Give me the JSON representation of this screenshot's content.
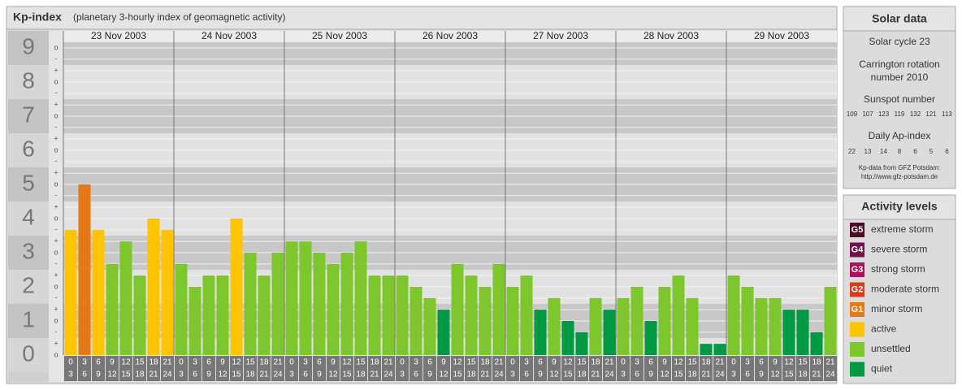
{
  "chart_data": {
    "type": "bar",
    "title": "Kp-index",
    "subtitle": "(planetary 3-hourly index of geomagnetic activity)",
    "ylim": [
      0,
      9.5
    ],
    "yticks": [
      0,
      1,
      2,
      3,
      4,
      5,
      6,
      7,
      8,
      9
    ],
    "minor_yticks": [
      {
        "value": 0,
        "label": "o"
      },
      {
        "value": 0.33,
        "label": "+"
      },
      {
        "value": 0.67,
        "label": "-"
      },
      {
        "value": 1,
        "label": "o"
      },
      {
        "value": 1.33,
        "label": "+"
      },
      {
        "value": 1.67,
        "label": "-"
      },
      {
        "value": 2,
        "label": "o"
      },
      {
        "value": 2.33,
        "label": "+"
      },
      {
        "value": 2.67,
        "label": "-"
      },
      {
        "value": 3,
        "label": "o"
      },
      {
        "value": 3.33,
        "label": "+"
      },
      {
        "value": 3.67,
        "label": "-"
      },
      {
        "value": 4,
        "label": "o"
      },
      {
        "value": 4.33,
        "label": "+"
      },
      {
        "value": 4.67,
        "label": "-"
      },
      {
        "value": 5,
        "label": "o"
      },
      {
        "value": 5.33,
        "label": "+"
      },
      {
        "value": 5.67,
        "label": "-"
      },
      {
        "value": 6,
        "label": "o"
      },
      {
        "value": 6.33,
        "label": "+"
      },
      {
        "value": 6.67,
        "label": "-"
      },
      {
        "value": 7,
        "label": "o"
      },
      {
        "value": 7.33,
        "label": "+"
      },
      {
        "value": 7.67,
        "label": "-"
      },
      {
        "value": 8,
        "label": "o"
      },
      {
        "value": 8.33,
        "label": "+"
      },
      {
        "value": 8.67,
        "label": "-"
      },
      {
        "value": 9,
        "label": "o"
      }
    ],
    "hours": [
      [
        "0",
        "3"
      ],
      [
        "3",
        "6"
      ],
      [
        "6",
        "9"
      ],
      [
        "9",
        "12"
      ],
      [
        "12",
        "15"
      ],
      [
        "15",
        "18"
      ],
      [
        "18",
        "21"
      ],
      [
        "21",
        "24"
      ]
    ],
    "days": [
      {
        "date": "23 Nov 2003",
        "values": [
          3.67,
          5,
          3.67,
          2.67,
          3.33,
          2.33,
          4,
          3.67
        ],
        "colors": [
          "#ffc400",
          "#e77817",
          "#ffc400",
          "#7dc62b",
          "#7dc62b",
          "#7dc62b",
          "#ffc400",
          "#ffc400"
        ]
      },
      {
        "date": "24 Nov 2003",
        "values": [
          2.67,
          2,
          2.33,
          2.33,
          4,
          3,
          2.33,
          3
        ],
        "colors": [
          "#7dc62b",
          "#7dc62b",
          "#7dc62b",
          "#7dc62b",
          "#ffc400",
          "#7dc62b",
          "#7dc62b",
          "#7dc62b"
        ]
      },
      {
        "date": "25 Nov 2003",
        "values": [
          3.33,
          3.33,
          3,
          2.67,
          3,
          3.33,
          2.33,
          2.33
        ],
        "colors": [
          "#7dc62b",
          "#7dc62b",
          "#7dc62b",
          "#7dc62b",
          "#7dc62b",
          "#7dc62b",
          "#7dc62b",
          "#7dc62b"
        ]
      },
      {
        "date": "26 Nov 2003",
        "values": [
          2.33,
          2,
          1.67,
          1.33,
          2.67,
          2.33,
          2,
          2.67
        ],
        "colors": [
          "#7dc62b",
          "#7dc62b",
          "#7dc62b",
          "#009a44",
          "#7dc62b",
          "#7dc62b",
          "#7dc62b",
          "#7dc62b"
        ]
      },
      {
        "date": "27 Nov 2003",
        "values": [
          2,
          2.33,
          1.33,
          1.67,
          1,
          0.67,
          1.67,
          1.33
        ],
        "colors": [
          "#7dc62b",
          "#7dc62b",
          "#009a44",
          "#7dc62b",
          "#009a44",
          "#009a44",
          "#7dc62b",
          "#009a44"
        ]
      },
      {
        "date": "28 Nov 2003",
        "values": [
          1.67,
          2,
          1,
          2,
          2.33,
          1.67,
          0.33,
          0.33
        ],
        "colors": [
          "#7dc62b",
          "#7dc62b",
          "#009a44",
          "#7dc62b",
          "#7dc62b",
          "#7dc62b",
          "#009a44",
          "#009a44"
        ]
      },
      {
        "date": "29 Nov 2003",
        "values": [
          2.33,
          2,
          1.67,
          1.67,
          1.33,
          1.33,
          0.67,
          2
        ],
        "colors": [
          "#7dc62b",
          "#7dc62b",
          "#7dc62b",
          "#7dc62b",
          "#009a44",
          "#009a44",
          "#009a44",
          "#7dc62b"
        ]
      }
    ],
    "legend": {
      "title": "Activity levels",
      "items": [
        {
          "icon": "G5",
          "label": "extreme storm",
          "color": "#4a0a26"
        },
        {
          "icon": "G4",
          "label": "severe storm",
          "color": "#74104a"
        },
        {
          "icon": "G3",
          "label": "strong storm",
          "color": "#b0105a"
        },
        {
          "icon": "G2",
          "label": "moderate storm",
          "color": "#d83c1c"
        },
        {
          "icon": "G1",
          "label": "minor storm",
          "color": "#e77817"
        },
        {
          "label": "active",
          "color": "#ffc400"
        },
        {
          "label": "unsettled",
          "color": "#7dc62b"
        },
        {
          "label": "quiet",
          "color": "#009a44"
        }
      ]
    }
  },
  "solar_data": {
    "title": "Solar data",
    "cycle": "Solar cycle 23",
    "carrington": [
      "Carrington rotation",
      "number 2010"
    ],
    "sunspot_title": "Sunspot number",
    "sunspot": [
      "109",
      "107",
      "123",
      "119",
      "132",
      "121",
      "113"
    ],
    "ap_title": "Daily Ap-index",
    "ap": [
      "22",
      "13",
      "14",
      "8",
      "6",
      "5",
      "6"
    ],
    "source": [
      "Kp-data from GFZ Potsdam:",
      "http://www.gfz-potsdam.de"
    ]
  }
}
